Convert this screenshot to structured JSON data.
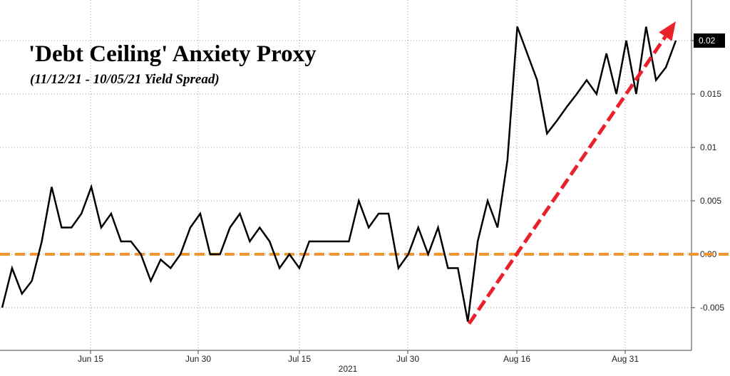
{
  "title": "'Debt Ceiling' Anxiety Proxy",
  "subtitle": "(11/12/21 - 10/05/21 Yield Spread)",
  "chart_data": {
    "type": "line",
    "title": "'Debt Ceiling' Anxiety Proxy",
    "subtitle": "(11/12/21 - 10/05/21 Yield Spread)",
    "xlabel": "2021",
    "ylabel": "",
    "ylim": [
      -0.0075,
      0.0235
    ],
    "y_ticks": [
      -0.005,
      0,
      0.005,
      0.01,
      0.015,
      0.02
    ],
    "y_tick_labels": [
      "-0.005",
      "0.00",
      "0.005",
      "0.01",
      "0.015",
      "0.02"
    ],
    "x_ticks": [
      "Jun 15",
      "Jun 30",
      "Jul 15",
      "Jul 30",
      "Aug 16",
      "Aug 31"
    ],
    "grid": true,
    "last_value_label": "0.02",
    "series": [
      {
        "color": "#000000",
        "values": [
          -0.005,
          -0.0013,
          -0.0037,
          -0.0025,
          0.0012,
          0.0063,
          0.0025,
          0.0025,
          0.0038,
          0.0063,
          0.0025,
          0.0038,
          0.0012,
          0.0012,
          0.0,
          -0.0025,
          -0.0005,
          -0.0013,
          0.0,
          0.0025,
          0.0038,
          0.0,
          0.0,
          0.0025,
          0.0038,
          0.0012,
          0.0025,
          0.0012,
          -0.0013,
          0.0,
          -0.0013,
          0.0012,
          0.0012,
          0.0012,
          0.0012,
          0.0012,
          0.005,
          0.0025,
          0.0038,
          0.0038,
          -0.0013,
          0.0,
          0.0025,
          0.0,
          0.0025,
          -0.0013,
          -0.0013,
          -0.0063,
          0.0012,
          0.005,
          0.0025,
          0.0088,
          0.0213,
          0.0188,
          0.0163,
          0.0113,
          0.0125,
          0.0138,
          0.015,
          0.0163,
          0.015,
          0.0188,
          0.015,
          0.02,
          0.015,
          0.0213,
          0.0163,
          0.0175,
          0.02
        ]
      }
    ],
    "reference_line": {
      "value": 0,
      "color": "#f0952e",
      "style": "dashed"
    },
    "trend_arrow": {
      "from": -0.0063,
      "to": 0.0218,
      "color": "#e8212b",
      "style": "dashed"
    }
  }
}
